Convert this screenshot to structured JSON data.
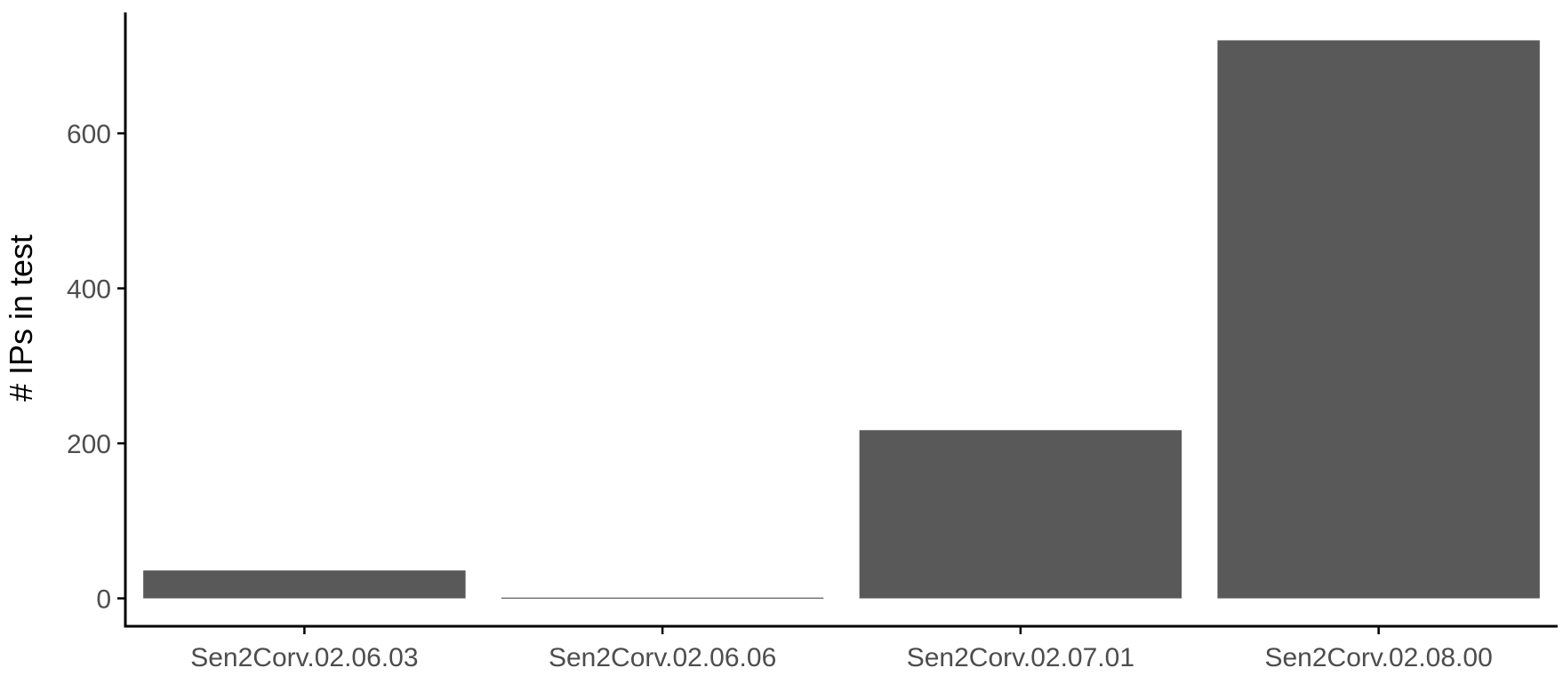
{
  "chart_data": {
    "type": "bar",
    "title": "",
    "xlabel": "",
    "ylabel": "# IPs in test",
    "categories": [
      "Sen2Corv.02.06.03",
      "Sen2Corv.02.06.06",
      "Sen2Corv.02.07.01",
      "Sen2Corv.02.08.00"
    ],
    "values": [
      36,
      1,
      217,
      720
    ],
    "yticks": [
      0,
      200,
      400,
      600
    ],
    "ylim": [
      -36,
      756
    ],
    "grid": false,
    "legend": "none",
    "bar_color": "#595959"
  }
}
